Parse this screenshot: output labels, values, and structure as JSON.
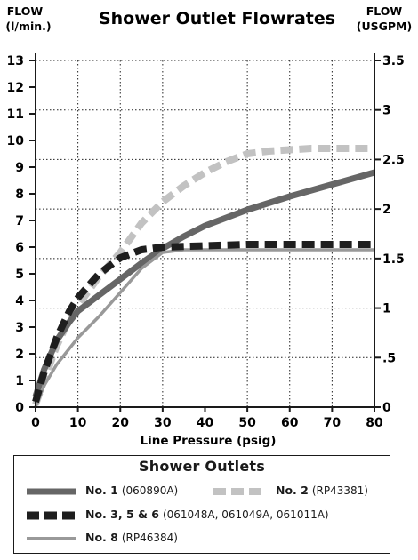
{
  "chart_data": {
    "type": "line",
    "title": "Shower Outlet Flowrates",
    "ylabel_left": [
      "FLOW",
      "(l/min.)"
    ],
    "ylabel_right": [
      "FLOW",
      "(USGPM)"
    ],
    "xlabel": "Line Pressure (psig)",
    "xlim": [
      0,
      80
    ],
    "ylim_left": [
      0,
      13
    ],
    "ylim_right": [
      0,
      3.5
    ],
    "x_ticks": [
      "0",
      "10",
      "20",
      "30",
      "40",
      "50",
      "60",
      "70",
      "80"
    ],
    "y_ticks_left": [
      "0",
      "1",
      "2",
      "3",
      "4",
      "5",
      "6",
      "7",
      "8",
      "9",
      "10",
      "11",
      "12",
      "13"
    ],
    "y_ticks_right": [
      "0",
      ".5",
      "1",
      "1.5",
      "2",
      "2.5",
      "3",
      "3.5"
    ],
    "grid": true,
    "legend_position": "below",
    "series": [
      {
        "name": "No. 1",
        "part": "(060890A)",
        "color": "#666666",
        "style": "solid-thick",
        "x": [
          0,
          2,
          5,
          8,
          10,
          15,
          20,
          25,
          30,
          35,
          40,
          50,
          60,
          70,
          80
        ],
        "y": [
          0.4,
          1.4,
          2.5,
          3.2,
          3.6,
          4.2,
          4.8,
          5.4,
          5.95,
          6.4,
          6.8,
          7.4,
          7.9,
          8.35,
          8.8
        ]
      },
      {
        "name": "No. 2",
        "part": "(RP43381)",
        "color": "#c2c2c2",
        "style": "dashed-thick",
        "x": [
          0,
          2,
          5,
          8,
          10,
          15,
          20,
          25,
          30,
          35,
          40,
          45,
          50,
          55,
          60,
          65,
          70,
          75,
          80
        ],
        "y": [
          0.1,
          1.0,
          2.3,
          3.3,
          3.8,
          4.9,
          5.8,
          6.9,
          7.7,
          8.3,
          8.8,
          9.2,
          9.5,
          9.6,
          9.65,
          9.7,
          9.7,
          9.7,
          9.7
        ]
      },
      {
        "name": "No. 3, 5 & 6",
        "part": "(061048A, 061049A, 061011A)",
        "color": "#1e1e1e",
        "style": "dashed-thick",
        "x": [
          0,
          2,
          5,
          8,
          10,
          15,
          20,
          25,
          30,
          40,
          50,
          60,
          70,
          80
        ],
        "y": [
          0.2,
          1.3,
          2.6,
          3.6,
          4.1,
          5.0,
          5.6,
          5.9,
          6.0,
          6.05,
          6.1,
          6.1,
          6.1,
          6.1
        ]
      },
      {
        "name": "No. 8",
        "part": "(RP46384)",
        "color": "#999999",
        "style": "solid-thin",
        "x": [
          0,
          2,
          5,
          8,
          10,
          15,
          20,
          25,
          30,
          35,
          40,
          50,
          60,
          70,
          80
        ],
        "y": [
          0,
          0.8,
          1.6,
          2.2,
          2.6,
          3.4,
          4.3,
          5.2,
          5.8,
          5.9,
          5.9,
          5.9,
          5.9,
          5.9,
          5.9
        ]
      }
    ]
  },
  "legend": {
    "title": "Shower Outlets",
    "items": [
      {
        "name": "No. 1",
        "part": "(060890A)"
      },
      {
        "name": "No. 2",
        "part": "(RP43381)"
      },
      {
        "name": "No. 3, 5 & 6",
        "part": "(061048A, 061049A, 061011A)"
      },
      {
        "name": "No. 8",
        "part": "(RP46384)"
      }
    ]
  }
}
